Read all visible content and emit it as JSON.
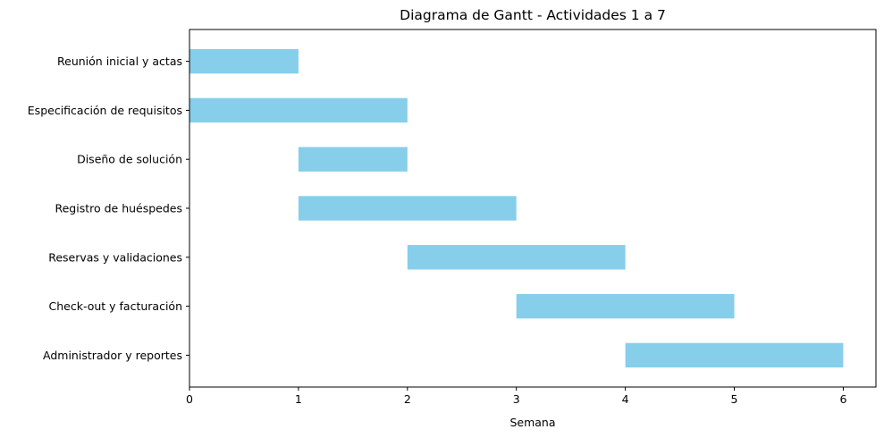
{
  "chart_data": {
    "type": "bar",
    "orientation": "horizontal",
    "title": "Diagrama de Gantt - Actividades 1 a 7",
    "xlabel": "Semana",
    "ylabel": "",
    "xlim": [
      0,
      6.3
    ],
    "x_ticks": [
      "0",
      "1",
      "2",
      "3",
      "4",
      "5",
      "6"
    ],
    "grid": false,
    "bar_color": "#87CEEB",
    "categories": [
      "Reunión inicial y actas",
      "Especificación de requisitos",
      "Diseño de solución",
      "Registro de huéspedes",
      "Reservas y validaciones",
      "Check-out y facturación",
      "Administrador y reportes"
    ],
    "series": [
      {
        "start": [
          0,
          0,
          1,
          1,
          2,
          3,
          4
        ],
        "duration": [
          1,
          2,
          1,
          2,
          2,
          2,
          2
        ]
      }
    ]
  }
}
